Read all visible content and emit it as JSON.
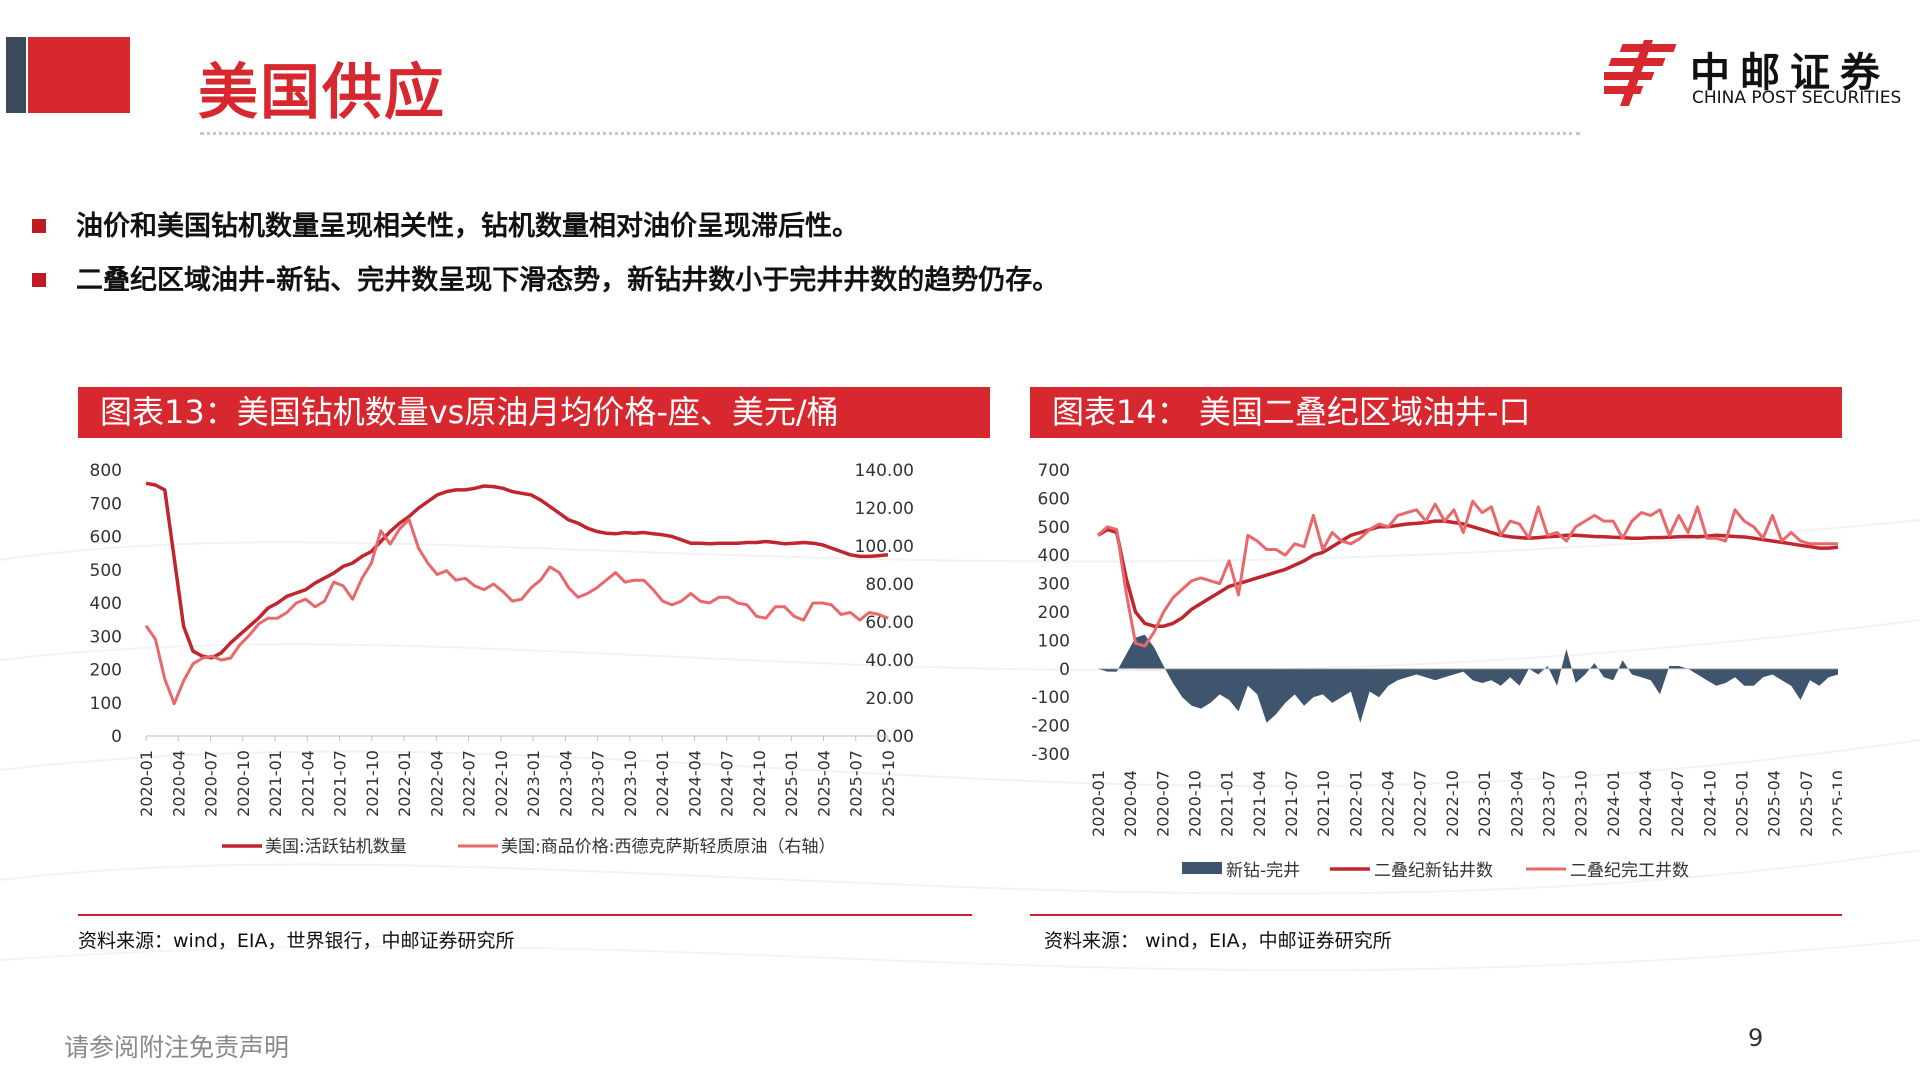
{
  "page": {
    "title": "美国供应",
    "logo_cn": "中邮证券",
    "logo_en": "CHINA POST SECURITIES",
    "bullets": [
      "油价和美国钻机数量呈现相关性，钻机数量相对油价呈现滞后性。",
      "二叠纪区域油井-新钻、完井数呈现下滑态势，新钻井数小于完井井数的趋势仍存。"
    ],
    "footer_note": "请参阅附注免责声明",
    "page_number": "9",
    "colors": {
      "brand_red": "#d7282f",
      "dark_red": "#c0262d",
      "light_red": "#e8686c",
      "navy": "#3f556e"
    }
  },
  "chart_data": [
    {
      "type": "line",
      "header": "图表13：美国钻机数量vs原油月均价格-座、美元/桶",
      "source": "资料来源：wind，EIA，世界银行，中邮证券研究所",
      "y_left": {
        "ticks": [
          "800",
          "700",
          "600",
          "500",
          "400",
          "300",
          "200",
          "100",
          "0"
        ],
        "range": [
          0,
          800
        ]
      },
      "y_right": {
        "ticks": [
          "140.00",
          "120.00",
          "100.00",
          "80.00",
          "60.00",
          "40.00",
          "20.00",
          "0.00"
        ],
        "range": [
          0,
          140
        ]
      },
      "x_labels": [
        "2020-01",
        "2020-04",
        "2020-07",
        "2020-10",
        "2021-01",
        "2021-04",
        "2021-07",
        "2021-10",
        "2022-01",
        "2022-04",
        "2022-07",
        "2022-10",
        "2023-01",
        "2023-04",
        "2023-07",
        "2023-10",
        "2024-01",
        "2024-04",
        "2024-07",
        "2024-10",
        "2025-01",
        "2025-04",
        "2025-07",
        "2025-10"
      ],
      "series": [
        {
          "name": "美国:活跃钻机数量",
          "axis": "left",
          "color": "#c0262d",
          "values": [
            760,
            755,
            740,
            535,
            330,
            255,
            240,
            235,
            250,
            280,
            305,
            330,
            355,
            385,
            400,
            420,
            430,
            440,
            460,
            475,
            490,
            510,
            520,
            540,
            555,
            585,
            615,
            640,
            660,
            685,
            705,
            725,
            735,
            740,
            740,
            745,
            752,
            750,
            745,
            735,
            730,
            725,
            710,
            690,
            670,
            650,
            640,
            625,
            615,
            610,
            608,
            612,
            610,
            612,
            608,
            605,
            600,
            590,
            580,
            580,
            578,
            580,
            580,
            580,
            582,
            582,
            585,
            582,
            578,
            580,
            582,
            580,
            575,
            565,
            555,
            545,
            540,
            540,
            542,
            545
          ]
        },
        {
          "name": "美国:商品价格:西德克萨斯轻质原油（右轴）",
          "axis": "right",
          "color": "#e8686c",
          "values": [
            58,
            51,
            30,
            17,
            29,
            38,
            41,
            42,
            40,
            41,
            48,
            53,
            59,
            62,
            62,
            65,
            70,
            72,
            68,
            71,
            81,
            79,
            72,
            83,
            91,
            108,
            101,
            109,
            114,
            99,
            91,
            85,
            87,
            82,
            83,
            79,
            77,
            80,
            76,
            71,
            72,
            78,
            82,
            89,
            86,
            78,
            73,
            75,
            78,
            82,
            86,
            81,
            82,
            82,
            77,
            71,
            69,
            71,
            75,
            71,
            70,
            73,
            73,
            70,
            69,
            63,
            62,
            68,
            68,
            63,
            61,
            70,
            70,
            69,
            64,
            65,
            61,
            65,
            64,
            62
          ]
        }
      ]
    },
    {
      "type": "line",
      "header": "图表14： 美国二叠纪区域油井-口",
      "source": "资料来源： wind，EIA，中邮证券研究所",
      "y_left": {
        "ticks": [
          "700",
          "600",
          "500",
          "400",
          "300",
          "200",
          "100",
          "0",
          "-100",
          "-200",
          "-300"
        ],
        "range": [
          -300,
          700
        ]
      },
      "x_labels": [
        "2020-01",
        "2020-04",
        "2020-07",
        "2020-10",
        "2021-01",
        "2021-04",
        "2021-07",
        "2021-10",
        "2022-01",
        "2022-04",
        "2022-07",
        "2022-10",
        "2023-01",
        "2023-04",
        "2023-07",
        "2023-10",
        "2024-01",
        "2024-04",
        "2024-07",
        "2024-10",
        "2025-01",
        "2025-04",
        "2025-07",
        "2025-10"
      ],
      "series": [
        {
          "name": "新钻-完井",
          "type": "area",
          "color": "#3f556e",
          "values": [
            0,
            -10,
            -10,
            50,
            110,
            120,
            75,
            10,
            -50,
            -100,
            -130,
            -140,
            -120,
            -90,
            -110,
            -150,
            -60,
            -90,
            -190,
            -160,
            -120,
            -90,
            -130,
            -100,
            -90,
            -120,
            -100,
            -80,
            -190,
            -80,
            -100,
            -60,
            -40,
            -30,
            -20,
            -30,
            -40,
            -30,
            -20,
            -10,
            -40,
            -50,
            -40,
            -60,
            -30,
            -60,
            0,
            -20,
            10,
            -60,
            70,
            -50,
            -20,
            20,
            -30,
            -40,
            30,
            -20,
            -30,
            -40,
            -90,
            10,
            10,
            0,
            -20,
            -40,
            -60,
            -50,
            -30,
            -60,
            -60,
            -30,
            -20,
            -40,
            -60,
            -110,
            -40,
            -60,
            -30,
            -20
          ]
        },
        {
          "name": "二叠纪新钻井数",
          "color": "#c0262d",
          "values": [
            470,
            490,
            480,
            320,
            200,
            160,
            150,
            150,
            160,
            180,
            210,
            230,
            250,
            270,
            290,
            300,
            310,
            320,
            330,
            340,
            350,
            365,
            380,
            400,
            410,
            430,
            450,
            470,
            480,
            490,
            500,
            500,
            505,
            510,
            512,
            515,
            520,
            520,
            515,
            510,
            500,
            490,
            480,
            470,
            465,
            462,
            460,
            462,
            465,
            467,
            470,
            470,
            468,
            466,
            465,
            463,
            462,
            460,
            460,
            462,
            462,
            463,
            465,
            466,
            465,
            467,
            470,
            468,
            466,
            464,
            460,
            455,
            450,
            445,
            440,
            435,
            430,
            425,
            425,
            428
          ]
        },
        {
          "name": "二叠纪完工井数",
          "color": "#e8686c",
          "values": [
            470,
            500,
            490,
            270,
            90,
            80,
            130,
            200,
            250,
            280,
            310,
            320,
            310,
            300,
            380,
            260,
            470,
            450,
            420,
            420,
            400,
            440,
            430,
            540,
            420,
            480,
            450,
            440,
            460,
            490,
            510,
            500,
            540,
            550,
            560,
            520,
            580,
            520,
            560,
            480,
            590,
            550,
            570,
            470,
            520,
            510,
            460,
            570,
            470,
            480,
            450,
            500,
            520,
            540,
            520,
            520,
            460,
            520,
            550,
            540,
            560,
            470,
            540,
            480,
            570,
            460,
            460,
            450,
            560,
            520,
            500,
            460,
            540,
            450,
            480,
            450,
            440,
            440,
            440,
            440
          ]
        }
      ]
    }
  ]
}
